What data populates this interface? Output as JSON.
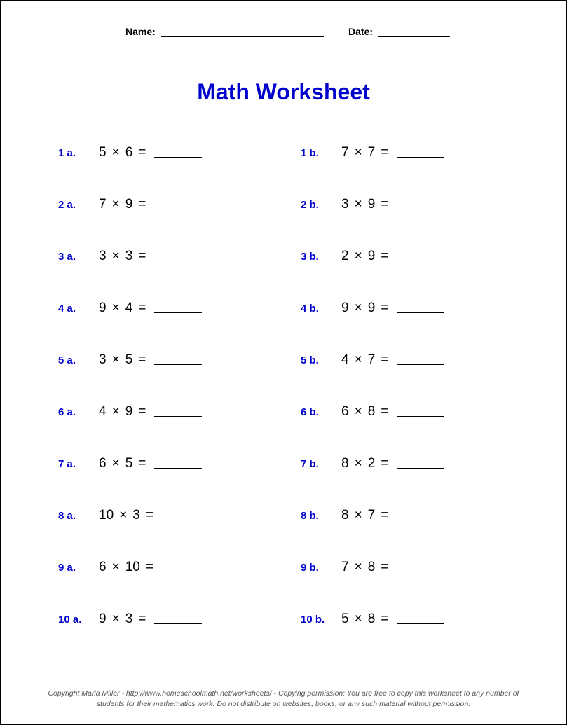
{
  "header": {
    "name_label": "Name:",
    "date_label": "Date:"
  },
  "title": "Math Worksheet",
  "style": {
    "label_color": "#0000cc",
    "title_color": "#0000cc",
    "title_fontsize": 32,
    "label_fontsize": 15,
    "expr_fontsize": 19,
    "background_color": "#ffffff",
    "text_color": "#000000",
    "blank_line_width": 68
  },
  "operator": "×",
  "equals": "=",
  "blank": "______",
  "rows": [
    {
      "a": {
        "label": "1 a.",
        "x": 5,
        "y": 6
      },
      "b": {
        "label": "1 b.",
        "x": 7,
        "y": 7
      }
    },
    {
      "a": {
        "label": "2 a.",
        "x": 7,
        "y": 9
      },
      "b": {
        "label": "2 b.",
        "x": 3,
        "y": 9
      }
    },
    {
      "a": {
        "label": "3 a.",
        "x": 3,
        "y": 3
      },
      "b": {
        "label": "3 b.",
        "x": 2,
        "y": 9
      }
    },
    {
      "a": {
        "label": "4 a.",
        "x": 9,
        "y": 4
      },
      "b": {
        "label": "4 b.",
        "x": 9,
        "y": 9
      }
    },
    {
      "a": {
        "label": "5 a.",
        "x": 3,
        "y": 5
      },
      "b": {
        "label": "5 b.",
        "x": 4,
        "y": 7
      }
    },
    {
      "a": {
        "label": "6 a.",
        "x": 4,
        "y": 9
      },
      "b": {
        "label": "6 b.",
        "x": 6,
        "y": 8
      }
    },
    {
      "a": {
        "label": "7 a.",
        "x": 6,
        "y": 5
      },
      "b": {
        "label": "7 b.",
        "x": 8,
        "y": 2
      }
    },
    {
      "a": {
        "label": "8 a.",
        "x": 10,
        "y": 3
      },
      "b": {
        "label": "8 b.",
        "x": 8,
        "y": 7
      }
    },
    {
      "a": {
        "label": "9 a.",
        "x": 6,
        "y": 10
      },
      "b": {
        "label": "9 b.",
        "x": 7,
        "y": 8
      }
    },
    {
      "a": {
        "label": "10 a.",
        "x": 9,
        "y": 3
      },
      "b": {
        "label": "10 b.",
        "x": 5,
        "y": 8
      }
    }
  ],
  "footer": "Copyright Maria Miller - http://www.homeschoolmath.net/worksheets/ - Copying permission: You are free to copy this worksheet to any number of students for their mathematics work. Do not distribute on websites, books, or any such material without permission."
}
